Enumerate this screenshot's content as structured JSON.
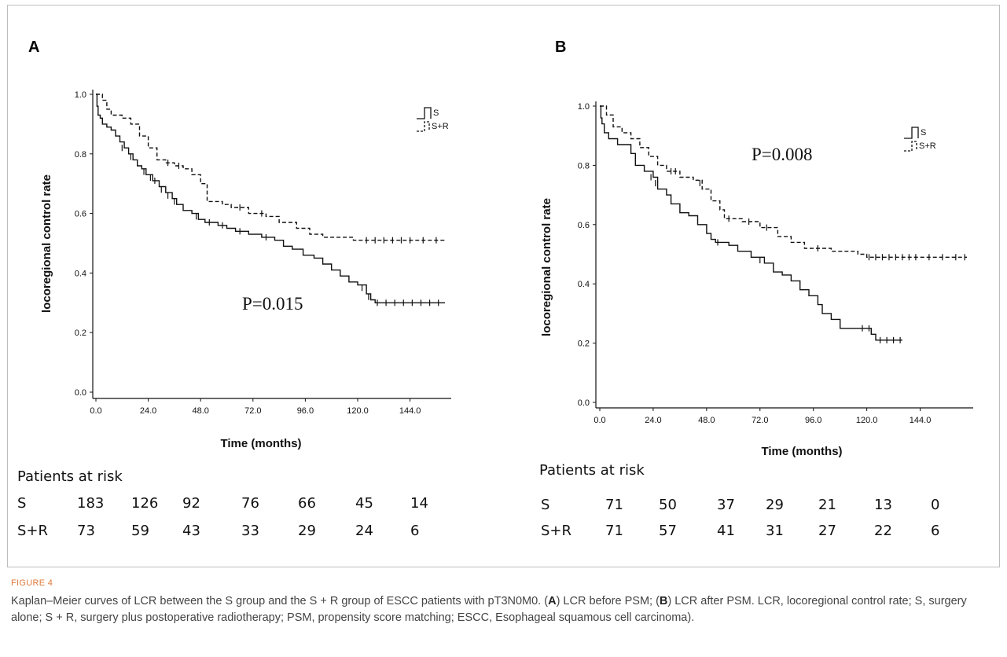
{
  "figure_label": "FIGURE 4",
  "caption": {
    "parts": [
      {
        "t": "Kaplan–Meier curves of LCR between the S group and the S + R group of ESCC patients with pT3N0M0. ("
      },
      {
        "t": "A",
        "b": true
      },
      {
        "t": ") LCR before PSM; ("
      },
      {
        "t": "B",
        "b": true
      },
      {
        "t": ") LCR after PSM. LCR, locoregional control rate; S, surgery alone; S + R, surgery plus postoperative radiotherapy; PSM, propensity score matching; ESCC, Esophageal squamous cell carcinoma)."
      }
    ]
  },
  "colors": {
    "line": "#111111",
    "caption_text": "#444444",
    "figure_label": "#e0783a"
  },
  "chart_data": [
    {
      "type": "line",
      "subtype": "kaplan-meier",
      "panel_label": "A",
      "xlabel": "Time (months)",
      "ylabel": "locoregional control rate",
      "xlim": [
        0,
        160
      ],
      "ylim": [
        0,
        1.0
      ],
      "x_ticks": [
        0,
        24,
        48,
        72,
        96,
        120,
        144
      ],
      "x_tick_labels": [
        "0.0",
        "24.0",
        "48.0",
        "72.0",
        "96.0",
        "120.0",
        "144.0"
      ],
      "y_ticks": [
        0,
        0.2,
        0.4,
        0.6,
        0.8,
        1.0
      ],
      "y_tick_labels": [
        "0.0",
        "0.2",
        "0.4",
        "0.6",
        "0.8",
        "1.0"
      ],
      "grid": false,
      "legend_position": "top-right",
      "annotation": "P=0.015",
      "series": [
        {
          "name": "S",
          "style": "solid",
          "points": [
            [
              0,
              1.0
            ],
            [
              0.5,
              0.96
            ],
            [
              1,
              0.93
            ],
            [
              2,
              0.92
            ],
            [
              3,
              0.9
            ],
            [
              5,
              0.89
            ],
            [
              7,
              0.88
            ],
            [
              9,
              0.86
            ],
            [
              11,
              0.84
            ],
            [
              13,
              0.82
            ],
            [
              15,
              0.8
            ],
            [
              17,
              0.78
            ],
            [
              19,
              0.76
            ],
            [
              21,
              0.75
            ],
            [
              23,
              0.73
            ],
            [
              26,
              0.71
            ],
            [
              29,
              0.69
            ],
            [
              32,
              0.67
            ],
            [
              35,
              0.65
            ],
            [
              37,
              0.63
            ],
            [
              40,
              0.61
            ],
            [
              44,
              0.6
            ],
            [
              47,
              0.58
            ],
            [
              50,
              0.57
            ],
            [
              56,
              0.56
            ],
            [
              60,
              0.55
            ],
            [
              64,
              0.54
            ],
            [
              70,
              0.53
            ],
            [
              76,
              0.52
            ],
            [
              82,
              0.51
            ],
            [
              86,
              0.49
            ],
            [
              90,
              0.48
            ],
            [
              95,
              0.46
            ],
            [
              100,
              0.45
            ],
            [
              104,
              0.43
            ],
            [
              108,
              0.41
            ],
            [
              112,
              0.39
            ],
            [
              116,
              0.37
            ],
            [
              120,
              0.36
            ],
            [
              124,
              0.33
            ],
            [
              126,
              0.31
            ],
            [
              128,
              0.3
            ],
            [
              160,
              0.3
            ]
          ],
          "censor_marks": [
            [
              12,
              0.82
            ],
            [
              16,
              0.79
            ],
            [
              22,
              0.74
            ],
            [
              25,
              0.72
            ],
            [
              27,
              0.71
            ],
            [
              30,
              0.68
            ],
            [
              33,
              0.66
            ],
            [
              36,
              0.64
            ],
            [
              46,
              0.59
            ],
            [
              52,
              0.57
            ],
            [
              58,
              0.56
            ],
            [
              66,
              0.54
            ],
            [
              78,
              0.52
            ],
            [
              122,
              0.35
            ],
            [
              125,
              0.32
            ],
            [
              129,
              0.3
            ],
            [
              133,
              0.3
            ],
            [
              137,
              0.3
            ],
            [
              141,
              0.3
            ],
            [
              145,
              0.3
            ],
            [
              149,
              0.3
            ],
            [
              153,
              0.3
            ],
            [
              157,
              0.3
            ]
          ]
        },
        {
          "name": "S+R",
          "style": "dashed",
          "points": [
            [
              0,
              1.0
            ],
            [
              3,
              0.98
            ],
            [
              5,
              0.95
            ],
            [
              7,
              0.93
            ],
            [
              12,
              0.92
            ],
            [
              16,
              0.9
            ],
            [
              20,
              0.86
            ],
            [
              24,
              0.82
            ],
            [
              28,
              0.78
            ],
            [
              32,
              0.77
            ],
            [
              36,
              0.76
            ],
            [
              40,
              0.75
            ],
            [
              44,
              0.73
            ],
            [
              48,
              0.7
            ],
            [
              51,
              0.64
            ],
            [
              58,
              0.63
            ],
            [
              62,
              0.62
            ],
            [
              70,
              0.6
            ],
            [
              78,
              0.59
            ],
            [
              84,
              0.57
            ],
            [
              92,
              0.55
            ],
            [
              98,
              0.53
            ],
            [
              104,
              0.52
            ],
            [
              118,
              0.51
            ],
            [
              160,
              0.51
            ]
          ],
          "censor_marks": [
            [
              33,
              0.77
            ],
            [
              38,
              0.76
            ],
            [
              66,
              0.62
            ],
            [
              76,
              0.6
            ],
            [
              124,
              0.51
            ],
            [
              128,
              0.51
            ],
            [
              132,
              0.51
            ],
            [
              136,
              0.51
            ],
            [
              140,
              0.51
            ],
            [
              144,
              0.51
            ],
            [
              150,
              0.51
            ],
            [
              156,
              0.51
            ]
          ]
        }
      ],
      "risk_table": {
        "title": "Patients at risk",
        "rows": [
          {
            "label": "S",
            "values": [
              "183",
              "126",
              "92",
              "76",
              "66",
              "45",
              "14"
            ]
          },
          {
            "label": "S+R",
            "values": [
              "73",
              "59",
              "43",
              "33",
              "29",
              "24",
              "6"
            ]
          }
        ]
      }
    },
    {
      "type": "line",
      "subtype": "kaplan-meier",
      "panel_label": "B",
      "xlabel": "Time (months)",
      "ylabel": "locoregional control rate",
      "xlim": [
        0,
        165
      ],
      "ylim": [
        0,
        1.0
      ],
      "x_ticks": [
        0,
        24,
        48,
        72,
        96,
        120,
        144
      ],
      "x_tick_labels": [
        "0.0",
        "24.0",
        "48.0",
        "72.0",
        "96.0",
        "120.0",
        "144.0"
      ],
      "y_ticks": [
        0,
        0.2,
        0.4,
        0.6,
        0.8,
        1.0
      ],
      "y_tick_labels": [
        "0.0",
        "0.2",
        "0.4",
        "0.6",
        "0.8",
        "1.0"
      ],
      "grid": false,
      "legend_position": "top-right",
      "annotation": "P=0.008",
      "series": [
        {
          "name": "S",
          "style": "solid",
          "points": [
            [
              0,
              1.0
            ],
            [
              0.5,
              0.96
            ],
            [
              1,
              0.94
            ],
            [
              2,
              0.91
            ],
            [
              4,
              0.89
            ],
            [
              8,
              0.87
            ],
            [
              14,
              0.84
            ],
            [
              16,
              0.8
            ],
            [
              20,
              0.78
            ],
            [
              24,
              0.76
            ],
            [
              26,
              0.72
            ],
            [
              30,
              0.7
            ],
            [
              32,
              0.67
            ],
            [
              36,
              0.64
            ],
            [
              40,
              0.63
            ],
            [
              44,
              0.6
            ],
            [
              48,
              0.57
            ],
            [
              50,
              0.55
            ],
            [
              52,
              0.54
            ],
            [
              58,
              0.53
            ],
            [
              62,
              0.51
            ],
            [
              68,
              0.49
            ],
            [
              74,
              0.47
            ],
            [
              78,
              0.44
            ],
            [
              82,
              0.43
            ],
            [
              86,
              0.41
            ],
            [
              90,
              0.38
            ],
            [
              94,
              0.36
            ],
            [
              98,
              0.33
            ],
            [
              100,
              0.3
            ],
            [
              104,
              0.28
            ],
            [
              108,
              0.25
            ],
            [
              118,
              0.25
            ],
            [
              122,
              0.23
            ],
            [
              124,
              0.21
            ],
            [
              136,
              0.21
            ]
          ],
          "censor_marks": [
            [
              23,
              0.76
            ],
            [
              25,
              0.74
            ],
            [
              53,
              0.54
            ],
            [
              72,
              0.48
            ],
            [
              118,
              0.25
            ],
            [
              121,
              0.25
            ],
            [
              126,
              0.21
            ],
            [
              129,
              0.21
            ],
            [
              132,
              0.21
            ],
            [
              135,
              0.21
            ]
          ]
        },
        {
          "name": "S+R",
          "style": "dashed",
          "points": [
            [
              0,
              1.0
            ],
            [
              3,
              0.97
            ],
            [
              6,
              0.93
            ],
            [
              10,
              0.91
            ],
            [
              14,
              0.89
            ],
            [
              18,
              0.86
            ],
            [
              22,
              0.83
            ],
            [
              26,
              0.8
            ],
            [
              30,
              0.78
            ],
            [
              36,
              0.76
            ],
            [
              42,
              0.75
            ],
            [
              46,
              0.72
            ],
            [
              50,
              0.68
            ],
            [
              54,
              0.65
            ],
            [
              56,
              0.62
            ],
            [
              64,
              0.61
            ],
            [
              72,
              0.59
            ],
            [
              80,
              0.56
            ],
            [
              86,
              0.54
            ],
            [
              92,
              0.52
            ],
            [
              104,
              0.51
            ],
            [
              116,
              0.5
            ],
            [
              120,
              0.49
            ],
            [
              165,
              0.49
            ]
          ],
          "censor_marks": [
            [
              32,
              0.78
            ],
            [
              34,
              0.78
            ],
            [
              45,
              0.74
            ],
            [
              58,
              0.62
            ],
            [
              67,
              0.61
            ],
            [
              75,
              0.59
            ],
            [
              98,
              0.52
            ],
            [
              121,
              0.49
            ],
            [
              124,
              0.49
            ],
            [
              127,
              0.49
            ],
            [
              130,
              0.49
            ],
            [
              133,
              0.49
            ],
            [
              136,
              0.49
            ],
            [
              139,
              0.49
            ],
            [
              142,
              0.49
            ],
            [
              148,
              0.49
            ],
            [
              154,
              0.49
            ],
            [
              160,
              0.49
            ],
            [
              164,
              0.49
            ]
          ]
        }
      ],
      "risk_table": {
        "title": "Patients at risk",
        "rows": [
          {
            "label": "S",
            "values": [
              "71",
              "50",
              "37",
              "29",
              "21",
              "13",
              "0"
            ]
          },
          {
            "label": "S+R",
            "values": [
              "71",
              "57",
              "41",
              "31",
              "27",
              "22",
              "6"
            ]
          }
        ]
      }
    }
  ]
}
